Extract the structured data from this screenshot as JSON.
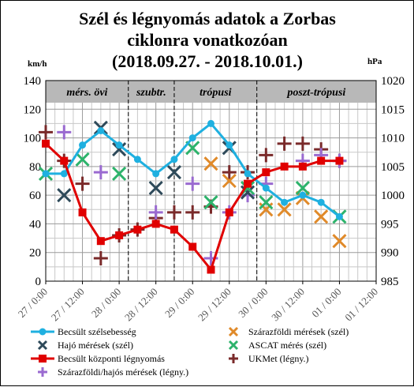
{
  "chart_data": {
    "type": "line",
    "title_lines": [
      "Szél és légnyomás adatok a Zorbas",
      "ciklonra vonatkozóan",
      "(2018.09.27. - 2018.10.01.)"
    ],
    "ylabel_left": "km/h",
    "ylabel_right": "hPa",
    "ylim_left": [
      0,
      140
    ],
    "yticks_left": [
      "0",
      "20",
      "40",
      "60",
      "80",
      "100",
      "120",
      "140"
    ],
    "ylim_right": [
      985,
      1020
    ],
    "yticks_right": [
      "985",
      "990",
      "995",
      "1000",
      "1005",
      "1010",
      "1015",
      "1020"
    ],
    "xlim_hours": [
      0,
      108
    ],
    "x_tick_labels": [
      "27 / 0:00",
      "27 / 12:00",
      "28 / 0:00",
      "28 / 12:00",
      "29 / 0:00",
      "29 / 12:00",
      "30 / 0:00",
      "30 / 12:00",
      "01 / 0:00",
      "01 / 12:00"
    ],
    "phases": [
      {
        "label": "mérs. övi",
        "start": 0,
        "end": 27
      },
      {
        "label": "szubtr.",
        "start": 27,
        "end": 42
      },
      {
        "label": "trópusi",
        "start": 42,
        "end": 69
      },
      {
        "label": "poszt-trópusi",
        "start": 69,
        "end": 108
      }
    ],
    "grid": true,
    "legend_position": "bottom",
    "series": [
      {
        "name": "Becsült szélsebesség",
        "axis": "left",
        "style": "line-circle",
        "color": "#1fb0e0",
        "x": [
          0,
          6,
          12,
          18,
          24,
          30,
          36,
          42,
          48,
          54,
          60,
          66,
          72,
          78,
          84,
          90,
          96
        ],
        "y": [
          75,
          75,
          95,
          105,
          95,
          85,
          75,
          85,
          100,
          110,
          95,
          75,
          65,
          55,
          60,
          55,
          45
        ]
      },
      {
        "name": "Becsült központi légnyomás",
        "axis": "right",
        "style": "line-square",
        "color": "#e00000",
        "x": [
          0,
          6,
          12,
          18,
          24,
          30,
          36,
          42,
          48,
          54,
          60,
          66,
          72,
          78,
          84,
          90,
          96
        ],
        "y": [
          1009,
          1006,
          997,
          992,
          993,
          994,
          995,
          994,
          991,
          987,
          997,
          1002,
          1004,
          1005,
          1005,
          1006,
          1006
        ]
      },
      {
        "name": "Hajó mérések (szél)",
        "axis": "left",
        "style": "x",
        "color": "#2e4a5a",
        "x": [
          6,
          18,
          24,
          36,
          42,
          60,
          66
        ],
        "y": [
          60,
          107,
          92,
          65,
          76,
          93,
          62
        ]
      },
      {
        "name": "Szárazföldi mérések (szél)",
        "axis": "left",
        "style": "x",
        "color": "#e08a2a",
        "x": [
          54,
          60,
          72,
          78,
          84,
          90,
          96
        ],
        "y": [
          82,
          70,
          50,
          50,
          58,
          45,
          28
        ]
      },
      {
        "name": "ASCAT mérés (szél)",
        "axis": "left",
        "style": "x",
        "color": "#2db36b",
        "x": [
          0,
          12,
          24,
          48,
          54,
          66,
          72,
          84,
          96
        ],
        "y": [
          75,
          85,
          75,
          93,
          55,
          65,
          55,
          65,
          45
        ]
      },
      {
        "name": "UKMet (légny.)",
        "axis": "right",
        "style": "plus",
        "color": "#7a2a2a",
        "x": [
          0,
          6,
          12,
          18,
          24,
          30,
          36,
          42,
          48,
          54,
          60,
          66,
          72,
          78,
          84,
          90,
          96
        ],
        "y": [
          1011,
          1006,
          1002,
          989,
          993,
          994,
          996,
          997,
          997,
          998,
          1004,
          1004,
          1007,
          1009,
          1009,
          1008,
          1006
        ]
      },
      {
        "name": "Szárazföldi/hajós mérések (légny.)",
        "axis": "right",
        "style": "plus",
        "color": "#9a6ad0",
        "x": [
          6,
          18,
          36,
          48,
          54,
          60,
          66,
          72,
          84,
          90,
          96
        ],
        "y": [
          1011,
          1004,
          997,
          1002,
          989,
          997,
          1000,
          1002,
          1006,
          1007,
          1006
        ]
      }
    ]
  }
}
